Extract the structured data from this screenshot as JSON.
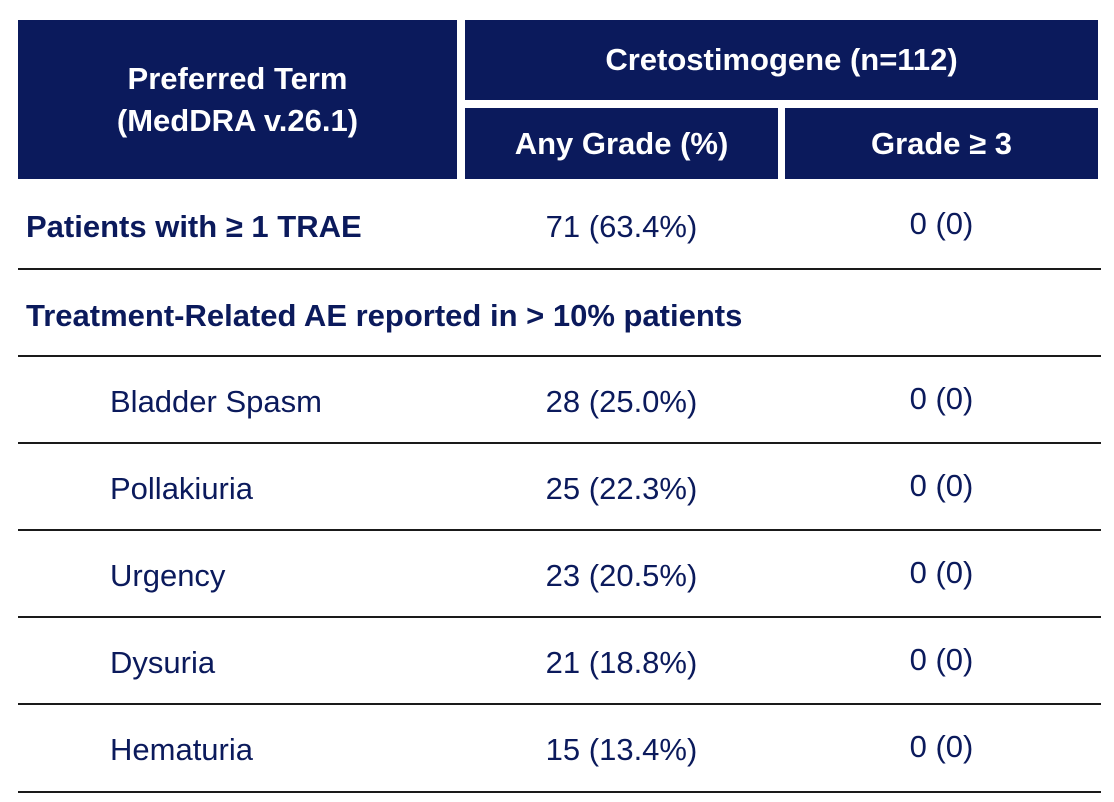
{
  "header": {
    "term_line1": "Preferred Term",
    "term_line2": "(MedDRA v.26.1)",
    "group": "Cretostimogene (n=112)",
    "any_grade": "Any Grade (%)",
    "grade3": "Grade ≥ 3"
  },
  "summary": {
    "label": "Patients with ≥ 1 TRAE",
    "any": "71 (63.4%)",
    "g3": "0 (0)"
  },
  "section": {
    "label": "Treatment-Related AE reported in > 10% patients"
  },
  "rows": [
    {
      "term": "Bladder Spasm",
      "any": "28 (25.0%)",
      "g3": "0 (0)"
    },
    {
      "term": "Pollakiuria",
      "any": "25 (22.3%)",
      "g3": "0 (0)"
    },
    {
      "term": "Urgency",
      "any": "23 (20.5%)",
      "g3": "0 (0)"
    },
    {
      "term": "Dysuria",
      "any": "21 (18.8%)",
      "g3": "0 (0)"
    },
    {
      "term": "Hematuria",
      "any": "15 (13.4%)",
      "g3": "0 (0)"
    }
  ]
}
